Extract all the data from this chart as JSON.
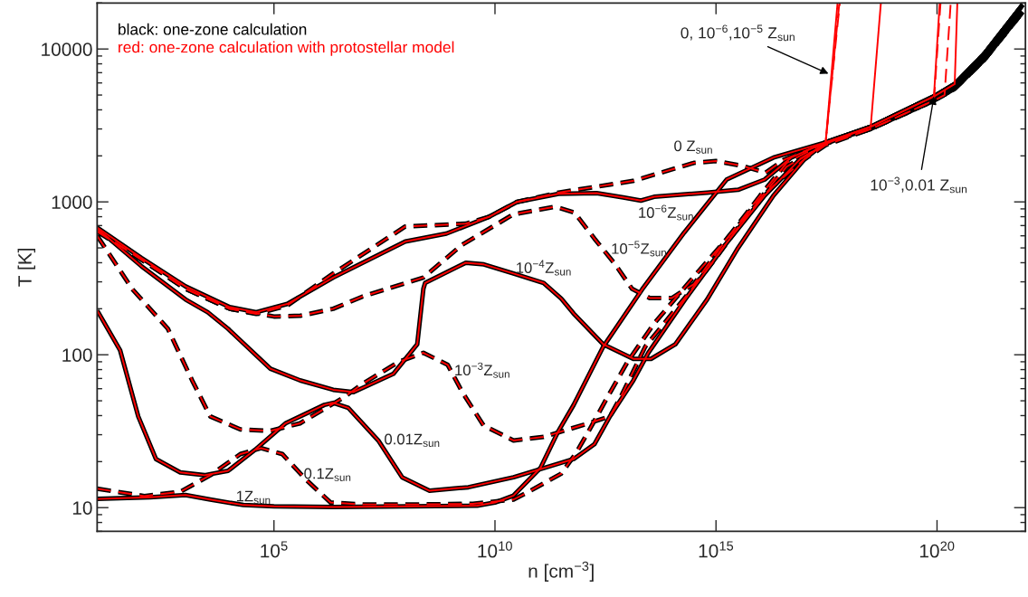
{
  "chart_data": {
    "type": "line",
    "xlabel": "n [cm$^{−3}$]",
    "ylabel": "T [K]",
    "log": "xy",
    "legend": "top left",
    "xlim": [
      10,
      1e+22
    ],
    "ylim": [
      7,
      20000
    ],
    "xticks": [
      {
        "value": 100000.0,
        "label": "10$^{5}$"
      },
      {
        "value": 10000000000.0,
        "label": "10$^{10}$"
      },
      {
        "value": 1000000000000000.0,
        "label": "10$^{15}$"
      },
      {
        "value": 1e+20,
        "label": "10$^{20}$"
      }
    ],
    "yticks": [
      10,
      100,
      1000,
      10000
    ],
    "series": [
      {
        "name": "black: one-zone calculation",
        "color": "#000000",
        "line_style": "dashed",
        "x": [
          10.0,
          100.0,
          1000.0,
          10000.0,
          39800.0,
          200000.0,
          2190000.0,
          93300000.0,
          2190000000.0,
          7410000000.0,
          31600000000.0,
          275000000000.0,
          13200000000000.0,
          316000000000000.0,
          1000000000000000.0,
          3980000000000000.0,
          1.32e+16,
          3.39e+16,
          3.02e+17,
          3.16e+18,
          8.51e+19,
          2.51e+20,
          1.17e+21,
          8.71e+21
        ],
        "values": [
          640,
          420,
          270,
          200,
          185,
          210,
          340,
          690,
          720,
          800,
          1000,
          1150,
          1370,
          1800,
          1850,
          1720,
          1550,
          1880,
          2450,
          3000,
          4600,
          5500,
          8500,
          17500
        ]
      },
      {
        "color": "#000000",
        "line_style": "solid",
        "x": [
          10.0,
          100.0,
          1000.0,
          10000.0,
          39800.0,
          200000.0,
          2190000.0,
          93300000.0,
          794000000.0,
          7410000000.0,
          31600000000.0,
          275000000000.0,
          2000000000000.0,
          7940000000000.0,
          20000000000000.0,
          39800000000000.0,
          631000000000000.0,
          3160000000000000.0,
          1.26e+16,
          5.01e+16,
          3.02e+17,
          3.16e+18,
          8.51e+19,
          2.51e+20,
          1.17e+21,
          8.71e+21
        ],
        "values": [
          680,
          430,
          280,
          205,
          190,
          215,
          320,
          550,
          620,
          800,
          1000,
          1130,
          1140,
          1070,
          1020,
          1080,
          1150,
          1200,
          1400,
          1950,
          2450,
          3100,
          4900,
          5900,
          9300,
          19500
        ]
      },
      {
        "color": "#000000",
        "line_style": "dashed",
        "x": [
          10.0,
          100.0,
          1000.0,
          10000.0,
          100000.0,
          398000.0,
          2190000.0,
          10000000.0,
          240000000.0,
          1820000000.0,
          26300000000.0,
          234000000000.0,
          631000000000.0,
          1780000000000.0,
          5250000000000.0,
          12600000000000.0,
          31600000000000.0,
          100000000000000.0,
          316000000000000.0,
          1580000000000000.0,
          1e+16,
          3.98e+16,
          3.02e+17,
          3.16e+18,
          8.51e+19,
          2.51e+20,
          1.17e+21,
          8.71e+21
        ],
        "values": [
          650,
          420,
          270,
          200,
          178,
          180,
          200,
          240,
          320,
          525,
          830,
          930,
          850,
          575,
          390,
          270,
          235,
          235,
          290,
          550,
          1100,
          1800,
          2450,
          3000,
          4600,
          5500,
          8500,
          17500
        ]
      },
      {
        "color": "#000000",
        "line_style": "solid",
        "x": [
          10.0,
          100.0,
          1000.0,
          3160.0,
          9120.0,
          83200.0,
          389000.0,
          2190000.0,
          6310000.0,
          50100000.0,
          174000000.0,
          240000000.0,
          263000000.0,
          2190000000.0,
          5620000000.0,
          26300000000.0,
          126000000000.0,
          316000000000.0,
          603000000000.0,
          2820000000000.0,
          13500000000000.0,
          33900000000000.0,
          120000000000000.0,
          631000000000000.0,
          3160000000000000.0,
          2e+16,
          1e+17,
          3.02e+17,
          3.16e+18,
          8.51e+19,
          2.51e+20,
          1.17e+21,
          8.71e+21
        ],
        "values": [
          670,
          380,
          230,
          190,
          148,
          81,
          68,
          59,
          57,
          75,
          117,
          270,
          295,
          400,
          390,
          340,
          295,
          233,
          186,
          117,
          94,
          94,
          117,
          230,
          500,
          1100,
          1900,
          2450,
          3100,
          4900,
          5900,
          9300,
          19500
        ]
      },
      {
        "color": "#000000",
        "line_style": "dashed",
        "x": [
          10.0,
          63.1,
          398.0,
          1410.0,
          3630.0,
          17400.0,
          83200.0,
          389000.0,
          3550000.0,
          10500000.0,
          67600000.0,
          240000000.0,
          851000000.0,
          1820000000.0,
          5500000000.0,
          26300000000.0,
          126000000000.0,
          1290000000000.0,
          3980000000000.0,
          7240000000000.0,
          25100000000000.0,
          191000000000000.0,
          1000000000000000.0,
          6310000000000000.0,
          3.98e+16,
          3.02e+17,
          3.16e+18,
          8.51e+19,
          2.51e+20,
          1.17e+21,
          8.71e+21
        ],
        "values": [
          600,
          268,
          148,
          68,
          39.5,
          32.5,
          31.8,
          35.6,
          52,
          65,
          90,
          103,
          86,
          57,
          34.5,
          27.5,
          29,
          35.6,
          39.5,
          54,
          113,
          233,
          430,
          900,
          1700,
          2400,
          3000,
          4600,
          5500,
          8500,
          17500
        ]
      },
      {
        "color": "#000000",
        "line_style": "solid",
        "x": [
          10.0,
          33.1,
          85.1,
          214.0,
          759.0,
          2690.0,
          9120.0,
          37200.0,
          182000.0,
          1380000.0,
          2190000.0,
          4790000.0,
          22900000.0,
          79400000.0,
          331000000.0,
          2510000000.0,
          26300000000.0,
          603000000000.0,
          1780000000000.0,
          3980000000000.0,
          13500000000000.0,
          29500000000000.0,
          200000000000000.0,
          1580000000000000.0,
          1.26e+16,
          7.94e+16,
          3.02e+17,
          3.16e+18,
          8.51e+19,
          2.51e+20,
          1.17e+21,
          8.71e+21
        ],
        "values": [
          195,
          107,
          39.5,
          20.8,
          17,
          16.3,
          17.4,
          23.9,
          35.6,
          47,
          48.5,
          45,
          27.5,
          15.8,
          12.9,
          13.6,
          15.8,
          20.8,
          26,
          39.5,
          68,
          103,
          230,
          520,
          1100,
          1900,
          2400,
          3100,
          4900,
          5900,
          9300,
          19500
        ]
      },
      {
        "color": "#000000",
        "line_style": "dashed",
        "x": [
          10.0,
          117.0,
          759.0,
          3630.0,
          17400.0,
          51300.0,
          155000.0,
          537000.0,
          1910000.0,
          10000000.0,
          240000000.0,
          3160000000.0,
          26300000000.0,
          57500000000.0,
          316000000000.0,
          692000000000.0,
          1290000000000.0,
          3160000000000.0,
          10000000000000.0,
          39800000000000.0,
          251000000000000.0,
          2000000000000000.0,
          1.58e+16,
          1e+17,
          3.02e+17,
          3.16e+18,
          8.51e+19,
          2.51e+20,
          1.17e+21,
          8.71e+21
        ],
        "values": [
          13.3,
          11.9,
          12.7,
          16.3,
          22.4,
          24.5,
          22.4,
          15.2,
          10.8,
          10.5,
          10.5,
          10.6,
          11.3,
          12.7,
          16.7,
          22.9,
          31.3,
          50,
          90,
          160,
          300,
          600,
          1200,
          1900,
          2350,
          3000,
          4600,
          5500,
          8500,
          17500
        ]
      },
      {
        "color": "#000000",
        "line_style": "solid",
        "x": [
          10.0,
          158.0,
          1000.0,
          3630.0,
          20400.0,
          100000.0,
          2190000.0,
          3980000000.0,
          10000000000.0,
          26300000000.0,
          107000000000.0,
          269000000000.0,
          603000000000.0,
          2820000000000.0,
          21400000000000.0,
          191000000000000.0,
          1740000000000000.0,
          2e+16,
          3.02e+17,
          3.16e+18,
          8.51e+19,
          2.51e+20,
          1.17e+21,
          8.71e+21
        ],
        "values": [
          11.4,
          11.7,
          12.1,
          11.3,
          10.4,
          10.2,
          10.1,
          10.3,
          10.8,
          12,
          18.2,
          31.5,
          47,
          113,
          268,
          630,
          1400,
          1950,
          2450,
          3100,
          4900,
          5900,
          9300,
          19500
        ]
      },
      {
        "name": "red: one-zone calculation with protostellar model",
        "color": "#ff0000",
        "line_style": "dashed",
        "x": [
          10.0,
          100.0,
          1000.0,
          10000.0,
          39800.0,
          200000.0,
          2190000.0,
          93300000.0,
          2190000000.0,
          7410000000.0,
          31600000000.0,
          275000000000.0,
          13200000000000.0,
          316000000000000.0,
          1000000000000000.0,
          3980000000000000.0,
          1.32e+16,
          3.39e+16,
          3.02e+17,
          6.17e+17
        ],
        "values": [
          640,
          420,
          270,
          200,
          185,
          210,
          340,
          690,
          720,
          800,
          1000,
          1150,
          1370,
          1800,
          1850,
          1720,
          1550,
          1880,
          2450,
          20000
        ]
      },
      {
        "color": "#ff0000",
        "line_style": "solid",
        "x": [
          10.0,
          100.0,
          1000.0,
          10000.0,
          39800.0,
          200000.0,
          2190000.0,
          93300000.0,
          794000000.0,
          7410000000.0,
          31600000000.0,
          275000000000.0,
          2000000000000.0,
          7940000000000.0,
          20000000000000.0,
          39800000000000.0,
          631000000000000.0,
          3160000000000000.0,
          1.26e+16,
          5.01e+16,
          3.02e+17,
          5.62e+17
        ],
        "values": [
          680,
          430,
          280,
          205,
          190,
          215,
          320,
          550,
          620,
          800,
          1000,
          1130,
          1140,
          1070,
          1020,
          1080,
          1150,
          1200,
          1400,
          1950,
          2450,
          20000
        ]
      },
      {
        "color": "#ff0000",
        "line_style": "dashed",
        "x": [
          10.0,
          100.0,
          1000.0,
          10000.0,
          100000.0,
          398000.0,
          2190000.0,
          10000000.0,
          240000000.0,
          1820000000.0,
          26300000000.0,
          234000000000.0,
          631000000000.0,
          1780000000000.0,
          5250000000000.0,
          12600000000000.0,
          31600000000000.0,
          100000000000000.0,
          316000000000000.0,
          1580000000000000.0,
          1e+16,
          3.98e+16,
          3.02e+17,
          6.31e+17
        ],
        "values": [
          650,
          420,
          270,
          200,
          178,
          180,
          200,
          240,
          320,
          525,
          830,
          930,
          850,
          575,
          390,
          270,
          235,
          235,
          290,
          550,
          1100,
          1800,
          2450,
          20000
        ]
      },
      {
        "color": "#ff0000",
        "line_style": "solid",
        "x": [
          10.0,
          100.0,
          1000.0,
          3160.0,
          9120.0,
          83200.0,
          389000.0,
          2190000.0,
          6310000.0,
          50100000.0,
          174000000.0,
          240000000.0,
          263000000.0,
          2190000000.0,
          5620000000.0,
          26300000000.0,
          126000000000.0,
          316000000000.0,
          603000000000.0,
          2820000000000.0,
          13500000000000.0,
          33900000000000.0,
          120000000000000.0,
          631000000000000.0,
          3160000000000000.0,
          2e+16,
          1e+17,
          3.02e+17,
          3.16e+18,
          5.37e+18
        ],
        "values": [
          670,
          380,
          230,
          190,
          148,
          81,
          68,
          59,
          57,
          75,
          117,
          270,
          295,
          400,
          390,
          340,
          295,
          233,
          186,
          117,
          94,
          94,
          117,
          230,
          500,
          1100,
          1900,
          2450,
          3100,
          20000
        ]
      },
      {
        "color": "#ff0000",
        "line_style": "dashed",
        "x": [
          10.0,
          63.1,
          398.0,
          1410.0,
          3630.0,
          17400.0,
          83200.0,
          389000.0,
          3550000.0,
          10500000.0,
          67600000.0,
          240000000.0,
          851000000.0,
          1820000000.0,
          5500000000.0,
          26300000000.0,
          126000000000.0,
          1290000000000.0,
          3980000000000.0,
          7240000000000.0,
          25100000000000.0,
          191000000000000.0,
          1000000000000000.0,
          6310000000000000.0,
          3.98e+16,
          3.02e+17,
          3.16e+18,
          8.51e+19,
          1.48e+20,
          2.04e+20
        ],
        "values": [
          600,
          268,
          148,
          68,
          39.5,
          32.5,
          31.8,
          35.6,
          52,
          65,
          90,
          103,
          86,
          57,
          34.5,
          27.5,
          29,
          35.6,
          39.5,
          54,
          113,
          233,
          430,
          900,
          1700,
          2400,
          3000,
          4600,
          5000,
          20000
        ]
      },
      {
        "color": "#ff0000",
        "line_style": "solid",
        "x": [
          10.0,
          33.1,
          85.1,
          214.0,
          759.0,
          2690.0,
          9120.0,
          37200.0,
          182000.0,
          1380000.0,
          2190000.0,
          4790000.0,
          22900000.0,
          79400000.0,
          331000000.0,
          2510000000.0,
          26300000000.0,
          603000000000.0,
          1780000000000.0,
          3980000000000.0,
          13500000000000.0,
          29500000000000.0,
          200000000000000.0,
          1580000000000000.0,
          1.26e+16,
          7.94e+16,
          3.02e+17,
          3.16e+18,
          8.51e+19,
          1.15e+20
        ],
        "values": [
          195,
          107,
          39.5,
          20.8,
          17,
          16.3,
          17.4,
          23.9,
          35.6,
          47,
          48.5,
          45,
          27.5,
          15.8,
          12.9,
          13.6,
          15.8,
          20.8,
          26,
          39.5,
          68,
          103,
          230,
          520,
          1100,
          1900,
          2400,
          3100,
          4900,
          20000
        ]
      },
      {
        "color": "#ff0000",
        "line_style": "dashed",
        "x": [
          10.0,
          117.0,
          759.0,
          3630.0,
          17400.0,
          51300.0,
          155000.0,
          537000.0,
          1910000.0,
          10000000.0,
          240000000.0,
          3160000000.0,
          26300000000.0,
          57500000000.0,
          316000000000.0,
          692000000000.0,
          1290000000000.0,
          3160000000000.0,
          10000000000000.0,
          39800000000000.0,
          251000000000000.0,
          2000000000000000.0,
          1.58e+16,
          1e+17,
          3.02e+17,
          3.16e+18,
          8.51e+19,
          1.2e+20
        ],
        "values": [
          13.3,
          11.9,
          12.7,
          16.3,
          22.4,
          24.5,
          22.4,
          15.2,
          10.8,
          10.5,
          10.5,
          10.6,
          11.3,
          12.7,
          16.7,
          22.9,
          31.3,
          50,
          90,
          160,
          300,
          600,
          1200,
          1900,
          2350,
          3000,
          4600,
          20000
        ]
      },
      {
        "color": "#ff0000",
        "line_style": "solid",
        "x": [
          10.0,
          158.0,
          1000.0,
          3630.0,
          20400.0,
          100000.0,
          2190000.0,
          3980000000.0,
          10000000000.0,
          26300000000.0,
          107000000000.0,
          269000000000.0,
          603000000000.0,
          2820000000000.0,
          21400000000000.0,
          191000000000000.0,
          1740000000000000.0,
          2e+16,
          3.02e+17,
          3.16e+18,
          8.51e+19,
          2.51e+20,
          2.88e+20
        ],
        "values": [
          11.4,
          11.7,
          12.1,
          11.3,
          10.4,
          10.2,
          10.1,
          10.3,
          10.8,
          12,
          18.2,
          31.5,
          47,
          113,
          268,
          630,
          1400,
          1950,
          2450,
          3100,
          4900,
          5900,
          20000
        ]
      }
    ],
    "annotations": [
      {
        "text": "0 Z$_{sun}$",
        "x": 1000000000000000.0,
        "y": 1850
      },
      {
        "text": "10$^{−6}$Z$_{sun}$",
        "x": 20000000000000.0,
        "y": 1020
      },
      {
        "text": "10$^{−5}$Z$_{sun}$",
        "x": 5250000000000.0,
        "y": 390
      },
      {
        "text": "10$^{−4}$Z$_{sun}$",
        "x": 26300000000.0,
        "y": 340
      },
      {
        "text": "10$^{−3}$Z$_{sun}$",
        "x": 1820000000.0,
        "y": 57
      },
      {
        "text": "0.01Z$_{sun}$",
        "x": 22900000.0,
        "y": 27.5
      },
      {
        "text": "0.1Z$_{sun}$",
        "x": 537000.0,
        "y": 15.2
      },
      {
        "text": "1Z$_{sun}$",
        "x": 20400.0,
        "y": 10.4
      },
      {
        "text": "0, 10$^{−6}$,10$^{−5}$ Z$_{sun}$",
        "x": 3.5e+17,
        "y": 6900
      },
      {
        "text": "10$^{−3}$,0.01 Z$_{sun}$",
        "x": 8.51e+19,
        "y": 4900
      }
    ]
  }
}
